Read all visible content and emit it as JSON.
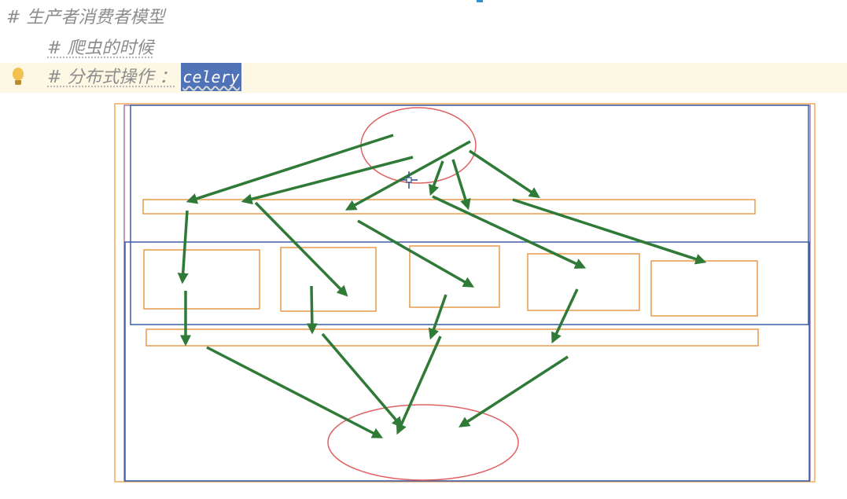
{
  "editor": {
    "line1": "# 生产者消费者模型",
    "line2": "# 爬虫的时候",
    "line3_prefix": "# 分布式操作 ：",
    "line3_selected": "celery"
  },
  "icons": {
    "bulb": "lightbulb-icon",
    "cursor": "crosshair-move-cursor-icon"
  },
  "diagram": {
    "colors": {
      "outer_frame": "#f0a85a",
      "blue_frame": "#3b5ea8",
      "purple_border": "#8a5a9a",
      "boxes": "#e79a4a",
      "ellipses": "#e06060",
      "arrows": "#2f7a37"
    }
  }
}
